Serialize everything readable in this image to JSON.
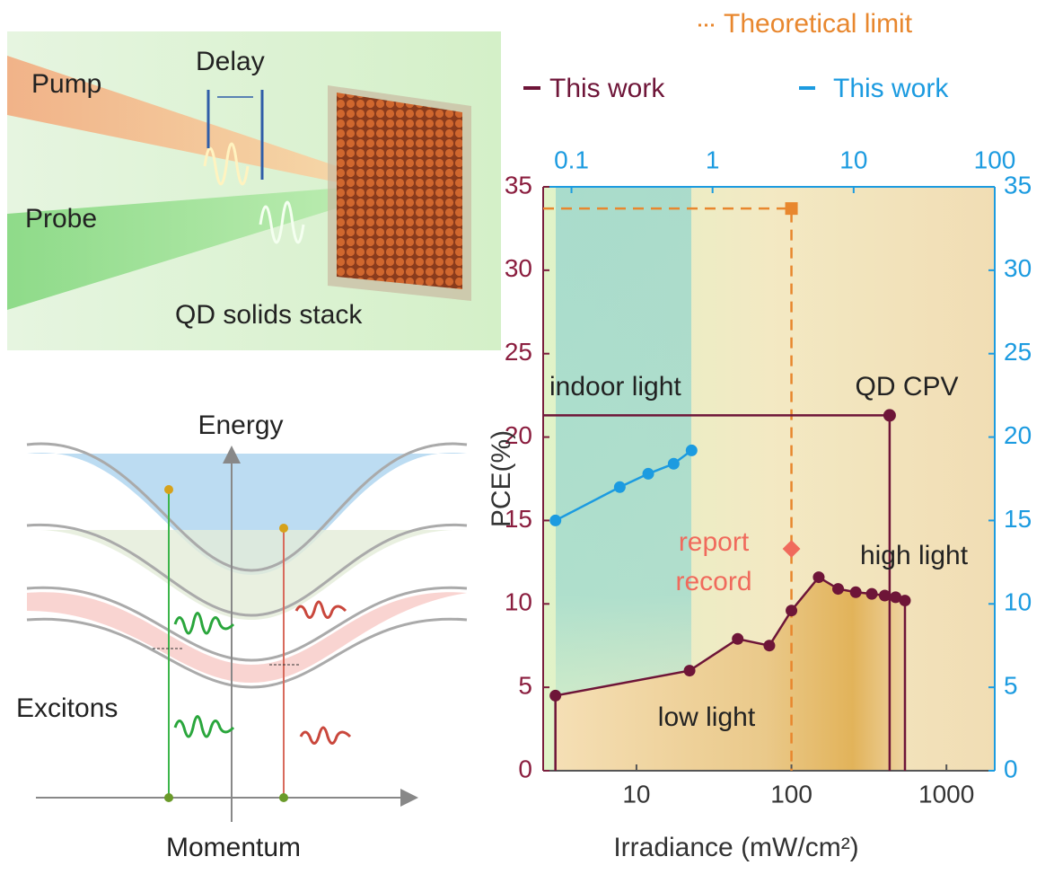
{
  "chart_data": {
    "type": "line",
    "xlabel": "Irradiance (mW/cm²)",
    "ylabel": "PCE(%)",
    "xlog": true,
    "xlim": [
      2.5,
      2050
    ],
    "xticks": [
      10,
      100,
      1000
    ],
    "x2lim": [
      0.063,
      100
    ],
    "x2ticks": [
      0.1,
      1,
      10,
      100
    ],
    "ylim": [
      0,
      35
    ],
    "yticks": [
      0,
      5,
      10,
      15,
      20,
      25,
      30,
      35
    ],
    "y2lim": [
      0,
      35
    ],
    "y2ticks": [
      0,
      5,
      10,
      15,
      20,
      25,
      30,
      35
    ],
    "grid": false,
    "series": [
      {
        "name": "Theoretical limit",
        "color": "#e8872e",
        "style": "dashed",
        "x": [
          100
        ],
        "values": [
          33.7
        ]
      },
      {
        "name": "This work",
        "color": "#6e1538",
        "x": [
          3,
          22,
          45,
          72,
          100,
          150,
          200,
          260,
          330,
          400,
          470,
          540
        ],
        "values": [
          4.5,
          6.0,
          7.9,
          7.5,
          9.6,
          11.6,
          10.9,
          10.7,
          10.6,
          10.5,
          10.4,
          10.2
        ]
      },
      {
        "name": "This work",
        "color": "#1c9be0",
        "axis": "x2",
        "x": [
          0.077,
          0.22,
          0.35,
          0.53,
          0.71
        ],
        "values": [
          15.0,
          17.0,
          17.8,
          18.4,
          19.2
        ]
      }
    ],
    "cpv": {
      "label": "QD CPV",
      "x": 430,
      "value": 21.3,
      "color": "#6e1538"
    },
    "report_record": {
      "label": [
        "report",
        "record"
      ],
      "x": 100,
      "value": 13.3,
      "color": "#f06a5c"
    },
    "regions": [
      "indoor light",
      "high light",
      "low light"
    ]
  },
  "schematic": {
    "pump": "Pump",
    "delay": "Delay",
    "probe": "Probe",
    "stack": "QD solids stack",
    "energy": "Energy",
    "excitons": "Excitons",
    "momentum": "Momentum"
  }
}
